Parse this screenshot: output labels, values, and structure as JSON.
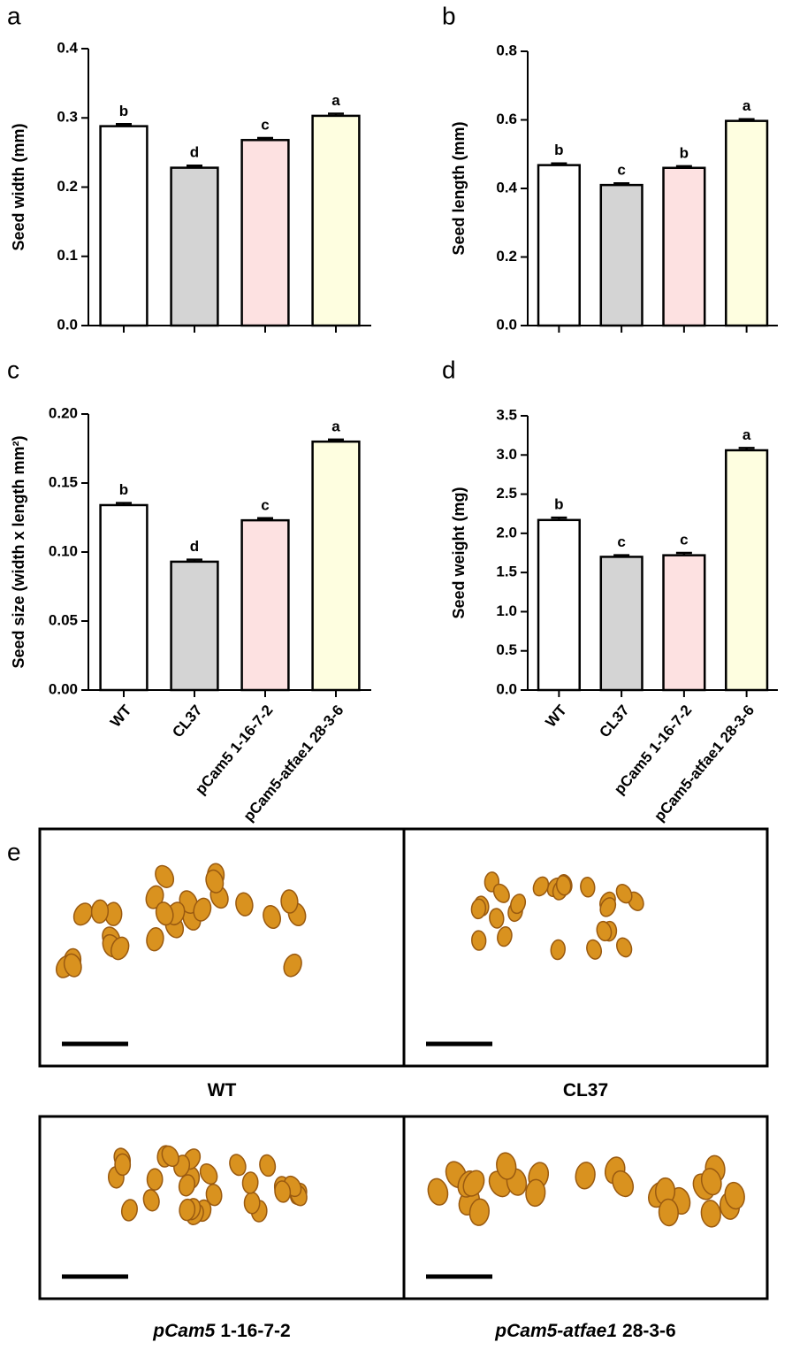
{
  "chart_data": [
    {
      "type": "bar",
      "panel": "a",
      "ylabel": "Seed width (mm)",
      "categories": [
        "WT",
        "CL37",
        "pCam5 1-16-7-2",
        "pCam5-atfae1 28-3-6"
      ],
      "values": [
        0.288,
        0.228,
        0.268,
        0.303
      ],
      "errors": [
        0.003,
        0.003,
        0.003,
        0.003
      ],
      "annotations": [
        "b",
        "d",
        "c",
        "a"
      ],
      "colors": [
        "#ffffff",
        "#d4d4d4",
        "#fde1e1",
        "#fefee0"
      ],
      "ylim": [
        0,
        0.4
      ],
      "yticks": [
        {
          "value": 0,
          "label": "0.0"
        },
        0.1,
        0.2,
        0.3,
        0.4
      ]
    },
    {
      "type": "bar",
      "panel": "b",
      "ylabel": "Seed length (mm)",
      "categories": [
        "WT",
        "CL37",
        "pCam5 1-16-7-2",
        "pCam5-atfae1 28-3-6"
      ],
      "values": [
        0.468,
        0.41,
        0.46,
        0.597
      ],
      "errors": [
        0.005,
        0.005,
        0.005,
        0.005
      ],
      "annotations": [
        "b",
        "c",
        "b",
        "a"
      ],
      "colors": [
        "#ffffff",
        "#d4d4d4",
        "#fde1e1",
        "#fefee0"
      ],
      "ylim": [
        0,
        0.8
      ],
      "yticks": [
        {
          "value": 0,
          "label": "0.0"
        },
        0.2,
        0.4,
        0.6,
        0.8
      ]
    },
    {
      "type": "bar",
      "panel": "c",
      "ylabel": "Seed size (width x length mm²)",
      "categories": [
        "WT",
        "CL37",
        "pCam5 1-16-7-2",
        "pCam5-atfae1 28-3-6"
      ],
      "values": [
        0.134,
        0.093,
        0.123,
        0.18
      ],
      "errors": [
        0.0015,
        0.0015,
        0.0015,
        0.0015
      ],
      "annotations": [
        "b",
        "d",
        "c",
        "a"
      ],
      "colors": [
        "#ffffff",
        "#d4d4d4",
        "#fde1e1",
        "#fefee0"
      ],
      "ylim": [
        0,
        0.2
      ],
      "yticks": [
        {
          "value": 0,
          "label": "0.00"
        },
        {
          "value": 0.05,
          "label": "0.05"
        },
        {
          "value": 0.1,
          "label": "0.10"
        },
        {
          "value": 0.15,
          "label": "0.15"
        },
        {
          "value": 0.2,
          "label": "0.20"
        }
      ]
    },
    {
      "type": "bar",
      "panel": "d",
      "ylabel": "Seed weight (mg)",
      "categories": [
        "WT",
        "CL37",
        "pCam5 1-16-7-2",
        "pCam5-atfae1 28-3-6"
      ],
      "values": [
        2.17,
        1.7,
        1.72,
        3.06
      ],
      "errors": [
        0.03,
        0.02,
        0.03,
        0.03
      ],
      "annotations": [
        "b",
        "c",
        "c",
        "a"
      ],
      "colors": [
        "#ffffff",
        "#d4d4d4",
        "#fde1e1",
        "#fefee0"
      ],
      "ylim": [
        0,
        3.5
      ],
      "yticks": [
        {
          "value": 0,
          "label": "0.0"
        },
        0.5,
        {
          "value": 1,
          "label": "1.0"
        },
        1.5,
        {
          "value": 2,
          "label": "2.0"
        },
        2.5,
        {
          "value": 3,
          "label": "3.0"
        },
        3.5
      ]
    }
  ],
  "photo_panel": {
    "label": "e",
    "captions": [
      {
        "text": "WT"
      },
      {
        "text": "CL37"
      },
      {
        "italic": "pCam5",
        "text": "1-16-7-2"
      },
      {
        "italic": "pCam5-atfae1",
        "text": "28-3-6"
      }
    ]
  }
}
